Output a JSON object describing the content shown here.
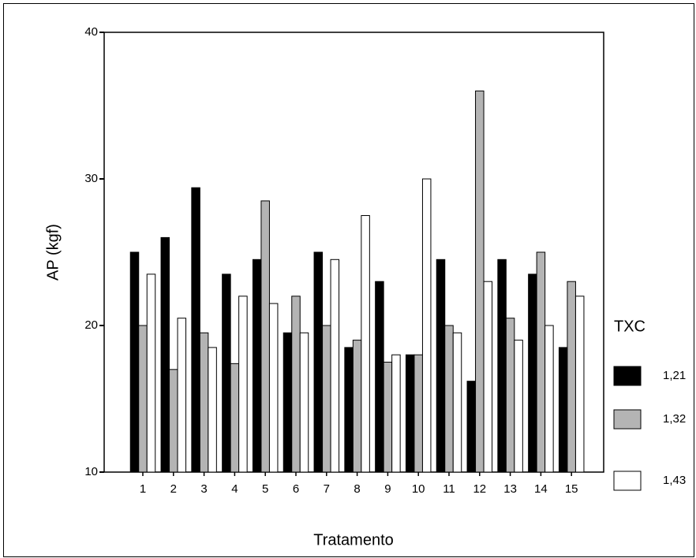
{
  "chart_data": {
    "type": "bar",
    "x_label": "Tratamento",
    "y_label": "AP (kgf)",
    "legend_title": "TXC",
    "categories": [
      "1",
      "2",
      "3",
      "4",
      "5",
      "6",
      "7",
      "8",
      "9",
      "10",
      "11",
      "12",
      "13",
      "14",
      "15"
    ],
    "series": [
      {
        "name": "1,21",
        "color": "#000000",
        "values": [
          25,
          26,
          29.4,
          23.5,
          24.5,
          19.5,
          25,
          18.5,
          23,
          18,
          24.5,
          16.2,
          24.5,
          23.5,
          18.5
        ]
      },
      {
        "name": "1,32",
        "color": "#b4b4b4",
        "values": [
          20,
          17,
          19.5,
          17.4,
          28.5,
          22,
          20,
          19,
          17.5,
          18,
          20,
          36,
          20.5,
          25,
          23
        ]
      },
      {
        "name": "1,43",
        "color": "#ffffff",
        "values": [
          23.5,
          20.5,
          18.5,
          22,
          21.5,
          19.5,
          24.5,
          27.5,
          18,
          30,
          19.5,
          23,
          19,
          20,
          22
        ]
      }
    ],
    "ylim": [
      10,
      40
    ],
    "yticks": [
      10,
      20,
      30,
      40
    ],
    "legend_position": "right"
  }
}
